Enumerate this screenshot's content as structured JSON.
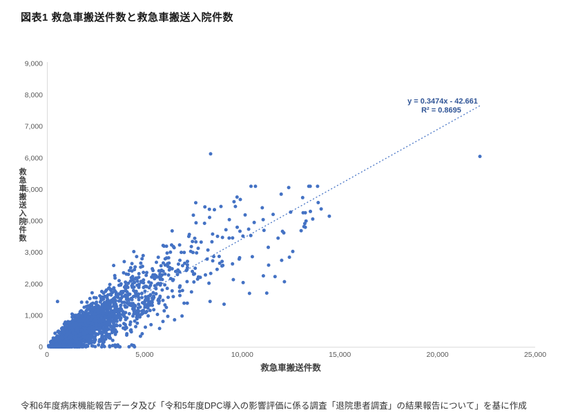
{
  "page": {
    "title": "図表1 救急車搬送件数と救急車搬送入院件数",
    "caption": "令和6年度病床機能報告データ及び「令和5年度DPC導入の影響評価に係る調査「退院患者調査」の結果報告について」を基に作成"
  },
  "chart_data": {
    "type": "scatter",
    "title": "図表1 救急車搬送件数と救急車搬送入院件数",
    "xlabel": "救急車搬送件数",
    "ylabel": "救急車搬送入院件数",
    "xlim": [
      0,
      25000
    ],
    "ylim": [
      0,
      9000
    ],
    "x_ticks": [
      "0",
      "5,000",
      "10,000",
      "15,000",
      "20,000",
      "25,000"
    ],
    "x_tick_values": [
      0,
      5000,
      10000,
      15000,
      20000,
      25000
    ],
    "y_ticks": [
      "0",
      "1,000",
      "2,000",
      "3,000",
      "4,000",
      "5,000",
      "6,000",
      "7,000",
      "8,000",
      "9,000"
    ],
    "y_tick_values": [
      0,
      1000,
      2000,
      3000,
      4000,
      5000,
      6000,
      7000,
      8000,
      9000
    ],
    "grid": false,
    "legend": "none",
    "marker_color": "#4472C4",
    "axis_line_color": "#D9D9D9",
    "trendline": {
      "label_line1": "y = 0.3474x - 42.661",
      "label_line2": "R² = 0.8695",
      "slope": 0.3474,
      "intercept": -42.661,
      "r_squared": 0.8695,
      "style": "dotted",
      "color": "#4472C4",
      "label_color": "#2F5496",
      "x_range": [
        200,
        22240
      ]
    },
    "notable_points": [
      [
        22170,
        6050
      ],
      [
        8380,
        6130
      ],
      [
        12380,
        5060
      ],
      [
        9900,
        4680
      ],
      [
        9580,
        4610
      ],
      [
        8910,
        4460
      ],
      [
        12480,
        4280
      ],
      [
        13120,
        4260
      ],
      [
        10150,
        4190
      ],
      [
        9340,
        4040
      ],
      [
        10610,
        3950
      ],
      [
        11070,
        4040
      ],
      [
        13160,
        3820
      ],
      [
        12060,
        3670
      ],
      [
        13230,
        4260
      ],
      [
        14040,
        4380
      ],
      [
        13610,
        4060
      ],
      [
        14460,
        4150
      ],
      [
        13230,
        3800
      ],
      [
        12590,
        3030
      ],
      [
        12130,
        3620
      ],
      [
        12020,
        2750
      ],
      [
        12160,
        2070
      ],
      [
        540,
        1440
      ]
    ],
    "cloud": {
      "description": "Dense positively-correlated cloud of hospital data points; y ≈ 0.3474x − 42.661 with spread increasing with x; mass concentrated at x < 8,000 and thinning out to ~14,600; a strip of near-zero-admission points runs along the x-axis up to ~5,400.",
      "n": 2000,
      "seed": 7,
      "x_median": 2100,
      "x_sigma": 0.76,
      "x_max": 14600,
      "noise_base": 85,
      "noise_slope": 0.1,
      "y_cap": 5100,
      "floor_points": 45,
      "floor_x_max": 5400,
      "marker_radius": 2.5
    }
  }
}
